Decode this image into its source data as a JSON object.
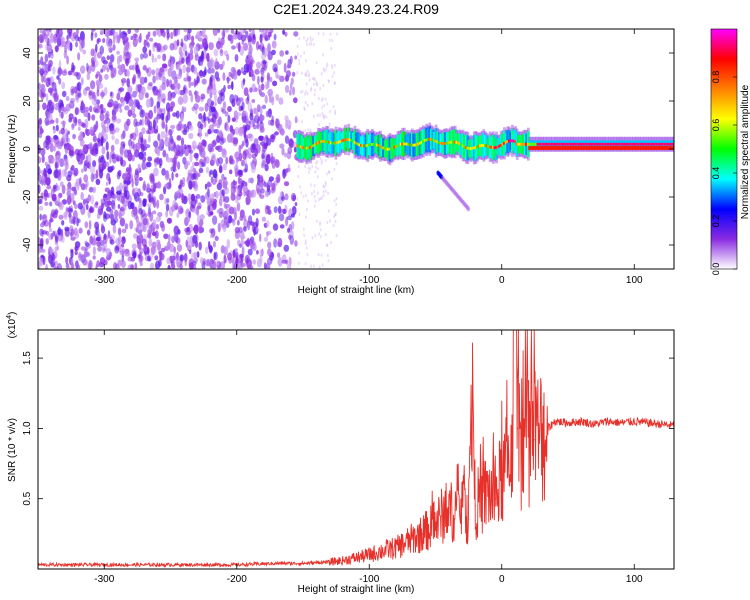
{
  "figure_title": "C2E1.2024.349.23.24.R09",
  "chart_data": [
    {
      "type": "heatmap",
      "xlabel": "Height of straight line (km)",
      "ylabel": "Frequency (Hz)",
      "xlim": [
        -350,
        130
      ],
      "ylim": [
        -50,
        50
      ],
      "x_ticks": [
        -300,
        -200,
        -100,
        0,
        100
      ],
      "x_tick_labels": [
        "-300",
        "-200",
        "-100",
        "0",
        "100"
      ],
      "y_ticks": [
        -40,
        -20,
        0,
        20,
        40
      ],
      "y_tick_labels": [
        "-40",
        "-20",
        "0",
        "20",
        "40"
      ],
      "colorbar": {
        "label": "Normalized spectral amplitude",
        "range": [
          0,
          1
        ],
        "ticks": [
          0.0,
          0.2,
          0.4,
          0.6,
          0.8
        ],
        "tick_labels": [
          "0.0",
          "0.2",
          "0.4",
          "0.6",
          "0.8"
        ],
        "colormap": [
          "#ffffff",
          "#8a2be2",
          "#0000ff",
          "#00ffff",
          "#00ff00",
          "#ffff00",
          "#ff7f00",
          "#ff0000",
          "#ff00ff"
        ]
      },
      "features": [
        {
          "description_values": "noise region",
          "x_range": [
            -350,
            -155
          ],
          "y_range": [
            -50,
            50
          ],
          "amplitude": 0.1
        },
        {
          "description_values": "carrier trace",
          "x_range": [
            -155,
            130
          ],
          "y_center": 2,
          "amplitude_peak": 0.9
        },
        {
          "description_values": "secondary trace",
          "x_start": -48,
          "x_end": -25,
          "y_start": -10,
          "y_end": -25
        }
      ]
    },
    {
      "type": "line",
      "xlabel": "Height of straight line (km)",
      "ylabel": "SNR (10 * v/v)",
      "y_multiplier": "(x10",
      "y_multiplier_exp": "4",
      "y_multiplier_close": ")",
      "xlim": [
        -350,
        130
      ],
      "ylim": [
        0,
        1.7
      ],
      "x_ticks": [
        -300,
        -200,
        -100,
        0,
        100
      ],
      "x_tick_labels": [
        "-300",
        "-200",
        "-100",
        "0",
        "100"
      ],
      "y_ticks": [
        0.5,
        1.0,
        1.5
      ],
      "y_tick_labels": [
        "0.5",
        "1.0",
        "1.5"
      ],
      "color": "#e8302a",
      "series": [
        {
          "x": [
            -350,
            -300,
            -250,
            -200,
            -170,
            -150,
            -130,
            -120,
            -110,
            -100,
            -90,
            -80,
            -70,
            -60,
            -50,
            -45,
            -40,
            -35,
            -30,
            -25,
            -22,
            -20,
            -15,
            -10,
            -5,
            0,
            5,
            8,
            10,
            12,
            15,
            20,
            25,
            30,
            35,
            40,
            50,
            60,
            70,
            80,
            90,
            100,
            110,
            120,
            130
          ],
          "y": [
            0.03,
            0.03,
            0.03,
            0.03,
            0.04,
            0.04,
            0.05,
            0.06,
            0.08,
            0.1,
            0.13,
            0.15,
            0.2,
            0.25,
            0.32,
            0.38,
            0.4,
            0.42,
            0.45,
            0.35,
            1.3,
            0.45,
            0.5,
            0.55,
            0.5,
            0.65,
            0.75,
            1.0,
            1.7,
            1.0,
            0.9,
            0.95,
            0.92,
            0.95,
            1.0,
            1.05,
            1.04,
            1.05,
            1.03,
            1.05,
            1.04,
            1.05,
            1.04,
            1.03,
            1.02
          ]
        }
      ]
    }
  ]
}
